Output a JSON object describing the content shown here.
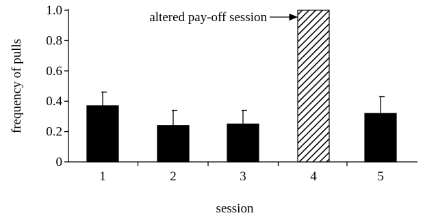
{
  "chart_data": {
    "type": "bar",
    "title": "",
    "xlabel": "session",
    "ylabel": "frequency of pulls",
    "categories": [
      "1",
      "2",
      "3",
      "4",
      "5"
    ],
    "values": [
      0.37,
      0.24,
      0.25,
      1.0,
      0.32
    ],
    "error_bars_upper": [
      0.09,
      0.1,
      0.09,
      0.0,
      0.11
    ],
    "bar_fills": [
      "solid",
      "solid",
      "solid",
      "hatched",
      "solid"
    ],
    "ylim": [
      0,
      1.0
    ],
    "yticks": [
      "0",
      "0.2",
      "0.4",
      "0.6",
      "0.8",
      "1.0"
    ],
    "grid": false,
    "annotation": {
      "text": "altered pay-off session",
      "category": "4"
    },
    "colors": {
      "bar": "#000000",
      "axis": "#000000",
      "hatch": "#000000",
      "background": "#ffffff"
    }
  }
}
